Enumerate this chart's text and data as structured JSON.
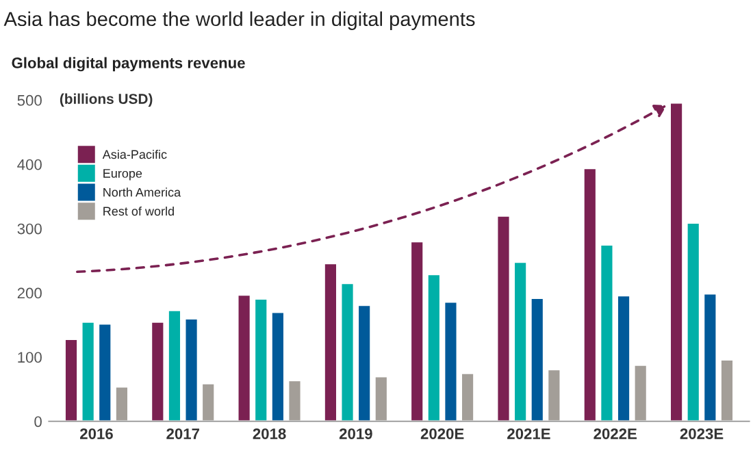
{
  "chart_data": {
    "type": "bar",
    "title": "Asia has become the world leader in digital payments",
    "subtitle": "Global digital payments revenue",
    "ylabel": "(billions USD)",
    "categories": [
      "2016",
      "2017",
      "2018",
      "2019",
      "2020E",
      "2021E",
      "2022E",
      "2023E"
    ],
    "series": [
      {
        "name": "Asia-Pacific",
        "color": "#7b2152",
        "values": [
          128,
          155,
          197,
          246,
          280,
          320,
          394,
          496
        ]
      },
      {
        "name": "Europe",
        "color": "#00b0a8",
        "values": [
          155,
          173,
          191,
          215,
          229,
          248,
          275,
          309
        ]
      },
      {
        "name": "North America",
        "color": "#005a9a",
        "values": [
          152,
          160,
          170,
          181,
          186,
          192,
          196,
          199
        ]
      },
      {
        "name": "Rest of world",
        "color": "#a39e98",
        "values": [
          54,
          59,
          64,
          70,
          75,
          81,
          88,
          96
        ]
      }
    ],
    "ylim": [
      0,
      500
    ],
    "yticks": [
      0,
      100,
      200,
      300,
      400,
      500
    ],
    "grid": false,
    "legend": "top left"
  }
}
